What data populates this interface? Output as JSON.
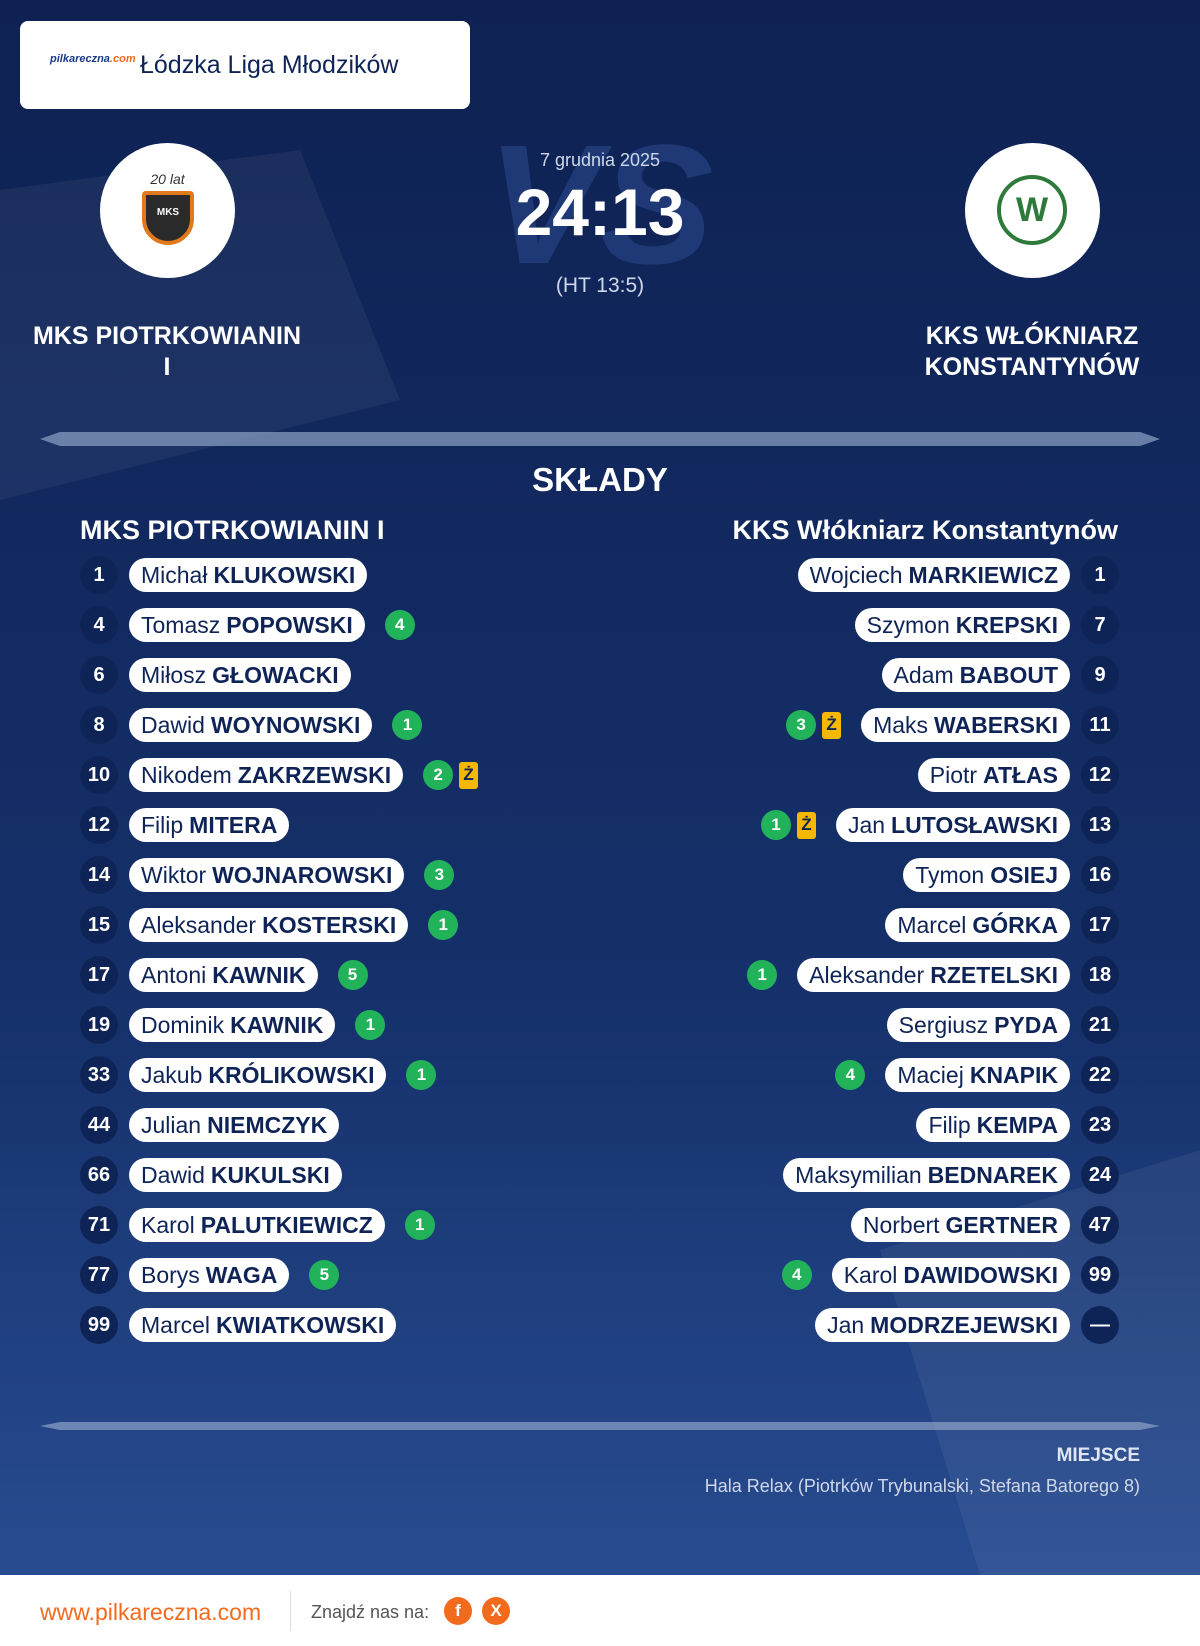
{
  "header": {
    "brand": "pilkareczna",
    "brand_suffix": ".com",
    "league": "Łódzka Liga Młodzików"
  },
  "match": {
    "date": "7 grudnia 2025",
    "score": "24:13",
    "halftime": "(HT 13:5)",
    "watermark": "VS",
    "home": {
      "name_line1": "MKS PIOTRKOWIANIN",
      "name_line2": "I",
      "logo_text": "20 lat",
      "logo_badge": "MKS"
    },
    "away": {
      "name_line1": "KKS WŁÓKNIARZ",
      "name_line2": "KONSTANTYNÓW",
      "logo_letter": "W"
    }
  },
  "lineups": {
    "title": "SKŁADY",
    "home": {
      "name": "MKS PIOTRKOWIANIN I",
      "players": [
        {
          "number": 1,
          "first": "Michał",
          "last": "KLUKOWSKI"
        },
        {
          "number": 4,
          "first": "Tomasz",
          "last": "POPOWSKI",
          "goals": 4
        },
        {
          "number": 6,
          "first": "Miłosz",
          "last": "GŁOWACKI"
        },
        {
          "number": 8,
          "first": "Dawid",
          "last": "WOYNOWSKI",
          "goals": 1
        },
        {
          "number": 10,
          "first": "Nikodem",
          "last": "ZAKRZEWSKI",
          "goals": 2,
          "card": "Ż"
        },
        {
          "number": 12,
          "first": "Filip",
          "last": "MITERA"
        },
        {
          "number": 14,
          "first": "Wiktor",
          "last": "WOJNAROWSKI",
          "goals": 3
        },
        {
          "number": 15,
          "first": "Aleksander",
          "last": "KOSTERSKI",
          "goals": 1
        },
        {
          "number": 17,
          "first": "Antoni",
          "last": "KAWNIK",
          "goals": 5
        },
        {
          "number": 19,
          "first": "Dominik",
          "last": "KAWNIK",
          "goals": 1
        },
        {
          "number": 33,
          "first": "Jakub",
          "last": "KRÓLIKOWSKI",
          "goals": 1
        },
        {
          "number": 44,
          "first": "Julian",
          "last": "NIEMCZYK"
        },
        {
          "number": 66,
          "first": "Dawid",
          "last": "KUKULSKI"
        },
        {
          "number": 71,
          "first": "Karol",
          "last": "PALUTKIEWICZ",
          "goals": 1
        },
        {
          "number": 77,
          "first": "Borys",
          "last": "WAGA",
          "goals": 5
        },
        {
          "number": 99,
          "first": "Marcel",
          "last": "KWIATKOWSKI"
        }
      ]
    },
    "away": {
      "name": "KKS Włókniarz Konstantynów",
      "players": [
        {
          "number": 1,
          "first": "Wojciech",
          "last": "MARKIEWICZ"
        },
        {
          "number": 7,
          "first": "Szymon",
          "last": "KREPSKI"
        },
        {
          "number": 9,
          "first": "Adam",
          "last": "BABOUT"
        },
        {
          "number": 11,
          "first": "Maks",
          "last": "WABERSKI",
          "goals": 3,
          "card": "Ż"
        },
        {
          "number": 12,
          "first": "Piotr",
          "last": "ATŁAS"
        },
        {
          "number": 13,
          "first": "Jan",
          "last": "LUTOSŁAWSKI",
          "goals": 1,
          "card": "Ż"
        },
        {
          "number": 16,
          "first": "Tymon",
          "last": "OSIEJ"
        },
        {
          "number": 17,
          "first": "Marcel",
          "last": "GÓRKA"
        },
        {
          "number": 18,
          "first": "Aleksander",
          "last": "RZETELSKI",
          "goals": 1
        },
        {
          "number": 21,
          "first": "Sergiusz",
          "last": "PYDA"
        },
        {
          "number": 22,
          "first": "Maciej",
          "last": "KNAPIK",
          "goals": 4
        },
        {
          "number": 23,
          "first": "Filip",
          "last": "KEMPA"
        },
        {
          "number": 24,
          "first": "Maksymilian",
          "last": "BEDNAREK"
        },
        {
          "number": 47,
          "first": "Norbert",
          "last": "GERTNER"
        },
        {
          "number": 99,
          "first": "Karol",
          "last": "DAWIDOWSKI",
          "goals": 4
        },
        {
          "number": "—",
          "first": "Jan",
          "last": "MODRZEJEWSKI"
        }
      ]
    }
  },
  "venue": {
    "label": "MIEJSCE",
    "text": "Hala Relax (Piotrków Trybunalski, Stefana Batorego 8)"
  },
  "footer": {
    "site": "www.pilkareczna.com",
    "follow": "Znajdź nas na:",
    "icons": [
      "f",
      "X"
    ]
  }
}
